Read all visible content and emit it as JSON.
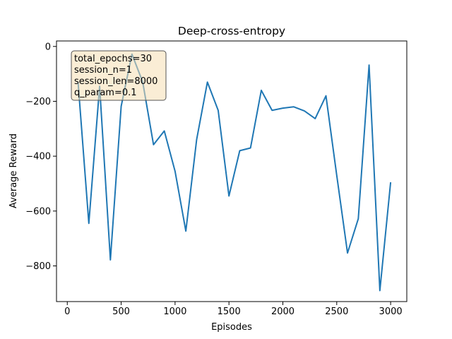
{
  "chart_data": {
    "type": "line",
    "title": "Deep-cross-entropy",
    "xlabel": "Episodes",
    "ylabel": "Average Reward",
    "xlim": [
      -100,
      3150
    ],
    "ylim": [
      -930,
      20
    ],
    "xticks": [
      0,
      500,
      1000,
      1500,
      2000,
      2500,
      3000
    ],
    "yticks": [
      0,
      -200,
      -400,
      -600,
      -800
    ],
    "xtick_labels": [
      "0",
      "500",
      "1000",
      "1500",
      "2000",
      "2500",
      "3000"
    ],
    "ytick_labels": [
      "0",
      "−200",
      "−400",
      "−600",
      "−800"
    ],
    "grid": false,
    "line_color": "#1f77b4",
    "annotation": {
      "lines": [
        "total_epochs=30",
        "session_n=1",
        "session_len=8000",
        "q_param=0.1"
      ],
      "facecolor": "#f5deb3",
      "edgecolor": "#555555"
    },
    "series": [
      {
        "x": [
          100,
          200,
          300,
          400,
          500,
          600,
          700,
          800,
          900,
          1000,
          1100,
          1200,
          1300,
          1400,
          1500,
          1600,
          1700,
          1800,
          1900,
          2000,
          2100,
          2200,
          2300,
          2400,
          2500,
          2600,
          2700,
          2800,
          2900,
          3000
        ],
        "y": [
          -130,
          -645,
          -145,
          -778,
          -218,
          -28,
          -130,
          -358,
          -308,
          -455,
          -673,
          -340,
          -130,
          -233,
          -545,
          -380,
          -370,
          -160,
          -233,
          -225,
          -220,
          -235,
          -263,
          -180,
          -470,
          -753,
          -628,
          -68,
          -890,
          -495
        ]
      }
    ]
  }
}
